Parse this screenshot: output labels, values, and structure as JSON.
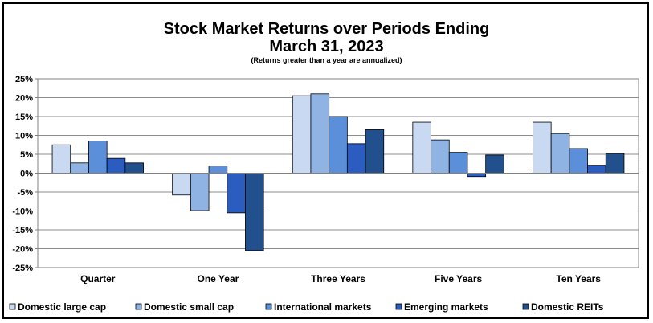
{
  "title": "Stock Market Returns over Periods Ending",
  "subtitle": "March 31, 2023",
  "note": "(Returns greater than a year are annualized)",
  "chart_data": {
    "type": "bar",
    "title": "Stock Market Returns over Periods Ending March 31, 2023",
    "subtitle": "(Returns greater than a year are annualized)",
    "categories": [
      "Quarter",
      "One Year",
      "Three Years",
      "Five Years",
      "Ten Years"
    ],
    "ylim": [
      -25,
      25
    ],
    "yticks": [
      25,
      20,
      15,
      10,
      5,
      0,
      -5,
      -10,
      -15,
      -20,
      -25
    ],
    "ytick_labels": [
      "25%",
      "20%",
      "15%",
      "10%",
      "5%",
      "0%",
      "-5%",
      "-10%",
      "-15%",
      "-20%",
      "-25%"
    ],
    "grid": true,
    "legend_position": "bottom",
    "series": [
      {
        "name": "Domestic large cap",
        "color": "#c9d9f1",
        "values": [
          7.5,
          -5.8,
          20.5,
          13.5,
          13.5
        ]
      },
      {
        "name": "Domestic small cap",
        "color": "#8fb4e3",
        "values": [
          2.7,
          -9.9,
          21.0,
          8.8,
          10.5
        ]
      },
      {
        "name": "International markets",
        "color": "#5b8fd9",
        "values": [
          8.5,
          1.9,
          15.0,
          5.5,
          6.5
        ]
      },
      {
        "name": "Emerging markets",
        "color": "#2b5cc0",
        "values": [
          3.9,
          -10.5,
          7.8,
          -0.9,
          2.1
        ]
      },
      {
        "name": "Domestic REITs",
        "color": "#21508c",
        "values": [
          2.7,
          -20.5,
          11.5,
          4.8,
          5.2
        ]
      }
    ]
  }
}
